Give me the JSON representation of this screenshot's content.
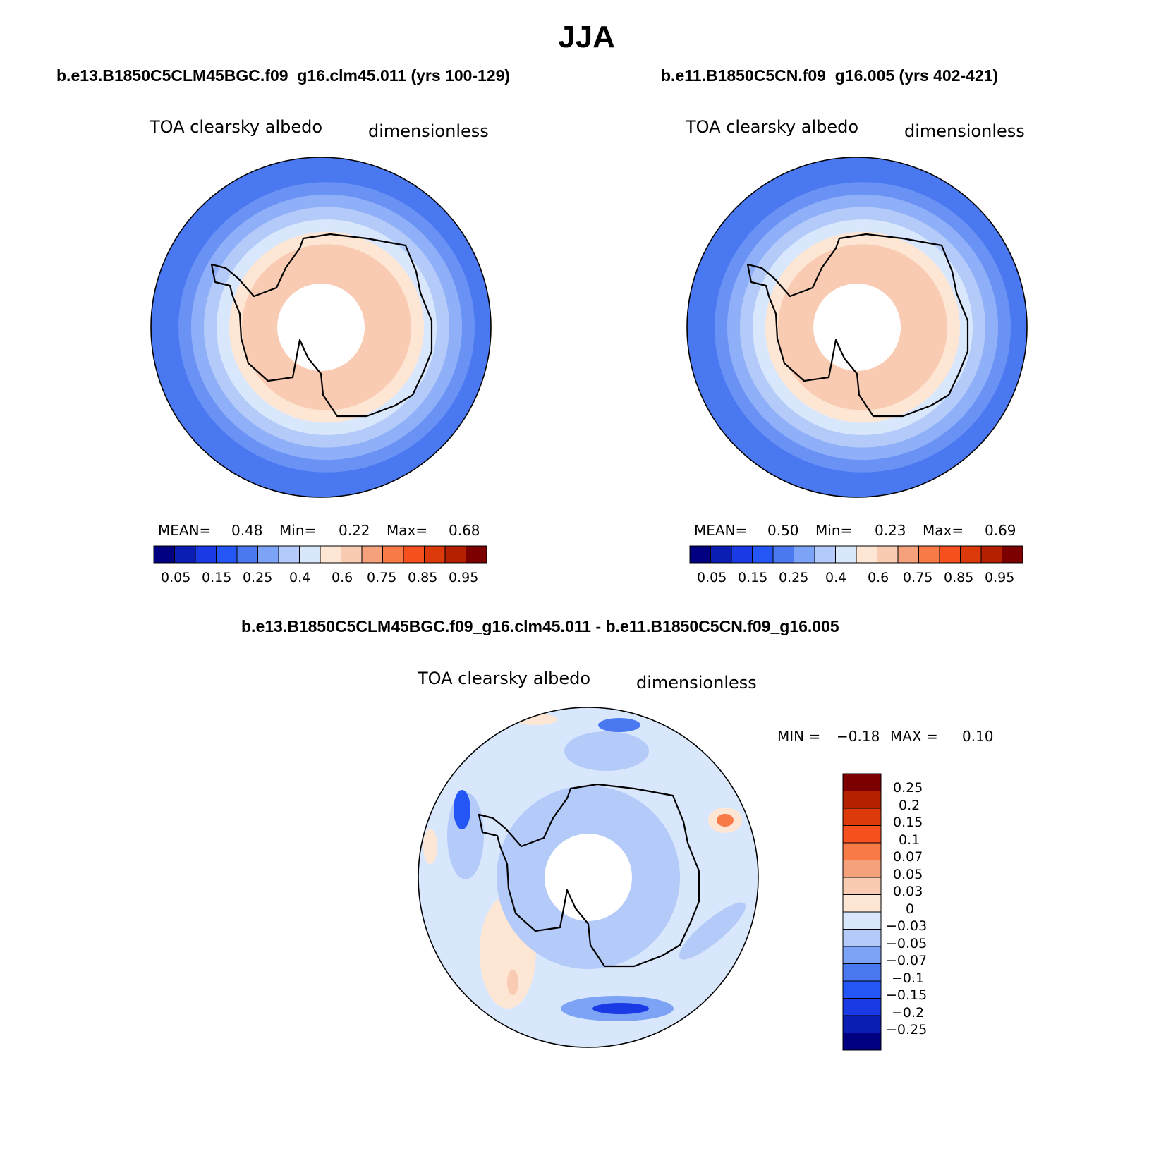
{
  "title": "JJA",
  "panels": [
    {
      "case": "b.e13.B1850C5CLM45BGC.f09_g16.clm45.011 (yrs 100-129)",
      "variable": "TOA clearsky albedo",
      "units": "dimensionless",
      "stats": {
        "mean_label": "MEAN=",
        "mean": "0.48",
        "min_label": "Min=",
        "min": "0.22",
        "max_label": "Max=",
        "max": "0.68"
      },
      "rings": [
        {
          "level": "0.25",
          "color": "#4a78f0"
        },
        {
          "level": "0.3",
          "color": "#6a92f5"
        },
        {
          "level": "0.35",
          "color": "#8fb0f8"
        },
        {
          "level": "0.4",
          "color": "#b4cbfa"
        },
        {
          "level": "0.45",
          "color": "#d9e7fc"
        },
        {
          "level": "0.5",
          "color": "#fde6d4"
        },
        {
          "level": "0.55",
          "color": "#f9cbb2"
        }
      ]
    },
    {
      "case": "b.e11.B1850C5CN.f09_g16.005 (yrs 402-421)",
      "variable": "TOA clearsky albedo",
      "units": "dimensionless",
      "stats": {
        "mean_label": "MEAN=",
        "mean": "0.50",
        "min_label": "Min=",
        "min": "0.23",
        "max_label": "Max=",
        "max": "0.69"
      },
      "rings": [
        {
          "level": "0.25",
          "color": "#4a78f0"
        },
        {
          "level": "0.3",
          "color": "#6a92f5"
        },
        {
          "level": "0.35",
          "color": "#8fb0f8"
        },
        {
          "level": "0.4",
          "color": "#b4cbfa"
        },
        {
          "level": "0.45",
          "color": "#d9e7fc"
        },
        {
          "level": "0.5",
          "color": "#fde6d4"
        },
        {
          "level": "0.55",
          "color": "#f9cbb2"
        }
      ]
    }
  ],
  "abs_colorbar": {
    "colors": [
      "#000080",
      "#0a1eb4",
      "#1a3ae6",
      "#2456f5",
      "#4a78f0",
      "#7da3f7",
      "#b4cbfa",
      "#d9e7fc",
      "#fde6d4",
      "#f9cbb2",
      "#f5a27c",
      "#f77a47",
      "#f5501e",
      "#dc3a0a",
      "#b42000",
      "#7d0000"
    ],
    "labels": [
      "0.05",
      "0.15",
      "0.25",
      "0.4",
      "0.6",
      "0.75",
      "0.85",
      "0.95"
    ]
  },
  "diff": {
    "title": "b.e13.B1850C5CLM45BGC.f09_g16.clm45.011 - b.e11.B1850C5CN.f09_g16.005",
    "variable": "TOA clearsky albedo",
    "units": "dimensionless",
    "stats": {
      "min_label": "MIN =",
      "min": "−0.18",
      "max_label": "MAX =",
      "max": "0.10"
    },
    "background_color": "#d9e7fc",
    "colorbar": {
      "colors": [
        "#000080",
        "#0a1eb4",
        "#1a3ae6",
        "#2456f5",
        "#4a78f0",
        "#7da3f7",
        "#b4cbfa",
        "#d9e7fc",
        "#fde6d4",
        "#f9cbb2",
        "#f5a27c",
        "#f77a47",
        "#f5501e",
        "#dc3a0a",
        "#b42000",
        "#7d0000"
      ],
      "labels": [
        "0.25",
        "0.2",
        "0.15",
        "0.1",
        "0.07",
        "0.05",
        "0.03",
        "0",
        "−0.03",
        "−0.05",
        "−0.07",
        "−0.1",
        "−0.15",
        "−0.2",
        "−0.25"
      ]
    }
  }
}
